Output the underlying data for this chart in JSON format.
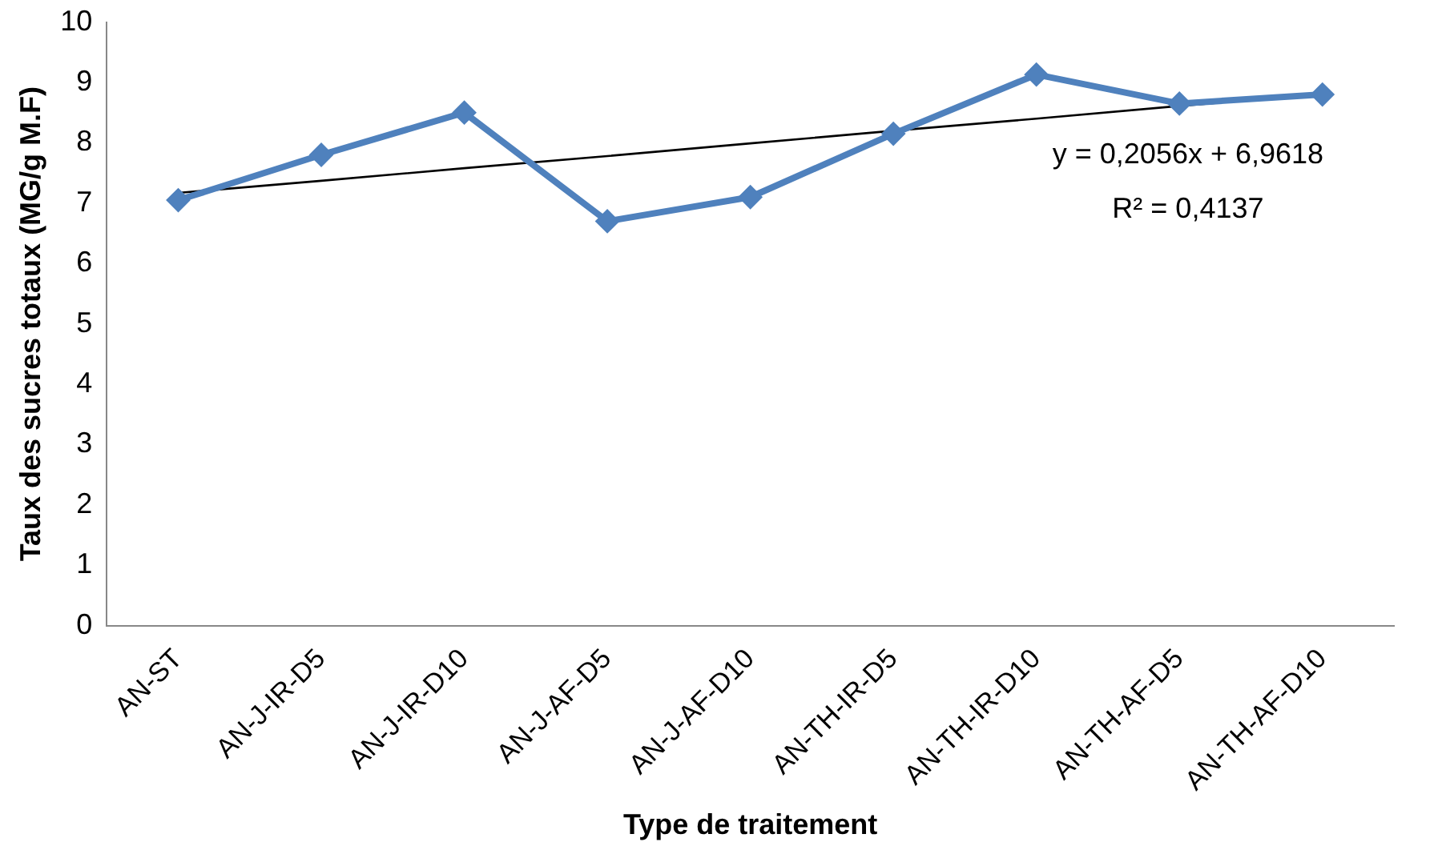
{
  "chart_data": {
    "type": "line",
    "xlabel": "Type de traitement",
    "ylabel": "Taux des sucres totaux (MG/g M.F)",
    "categories": [
      "AN-ST",
      "AN-J-IR-D5",
      "AN-J-IR-D10",
      "AN-J-AF-D5",
      "AN-J-AF-D10",
      "AN-TH-IR-D5",
      "AN-TH-IR-D10",
      "AN-TH-AF-D5",
      "AN-TH-AF-D10"
    ],
    "series": [
      {
        "color": "#4f81bd",
        "marker": "diamond",
        "values": [
          7.05,
          7.8,
          8.5,
          6.7,
          7.1,
          8.15,
          9.13,
          8.65,
          8.8
        ]
      },
      {
        "type": "line",
        "color": "#000000",
        "marker": "none",
        "values": [
          7.17,
          7.37,
          7.58,
          7.78,
          7.99,
          8.2,
          8.4,
          8.61,
          8.81
        ]
      }
    ],
    "ylim": [
      0,
      10
    ],
    "yticks": [
      0,
      1,
      2,
      3,
      4,
      5,
      6,
      7,
      8,
      9,
      10
    ],
    "grid": false,
    "legend": false,
    "annotations": [
      "y = 0,2056x + 6,9618",
      "R² = 0,4137"
    ]
  }
}
